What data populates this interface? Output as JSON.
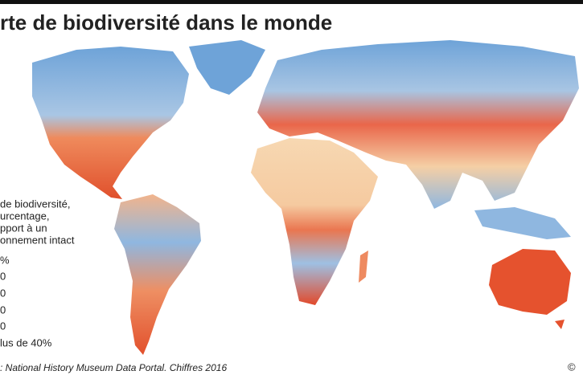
{
  "header": {
    "title": "rte de biodiversité dans le monde"
  },
  "legend": {
    "title_lines": [
      "de biodiversité,",
      "urcentage,",
      "pport à un",
      "onnement intact"
    ],
    "items": [
      "%",
      "0",
      "0",
      "0",
      "0",
      "lus de 40%"
    ]
  },
  "footer": {
    "source": ": National History Museum Data Portal. Chiffres 2016",
    "copyright": "©"
  }
}
